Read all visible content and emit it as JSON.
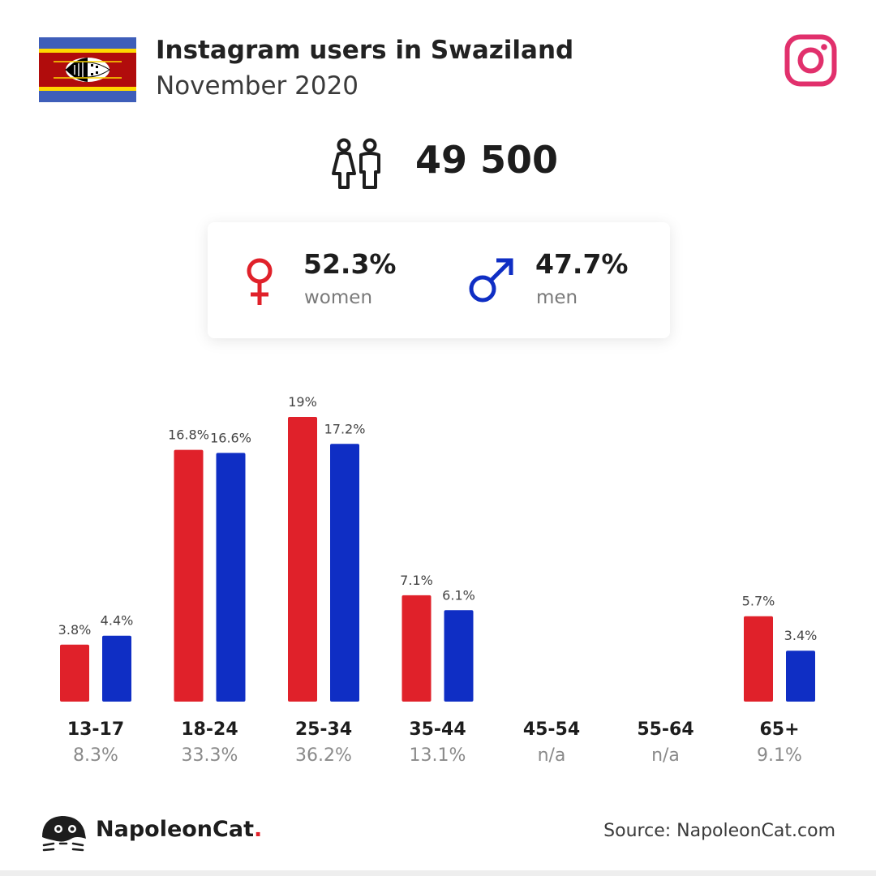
{
  "header": {
    "title": "Instagram users in Swaziland",
    "subtitle": "November 2020"
  },
  "icons": {
    "flag": "eswatini-flag-icon",
    "social": "instagram-icon",
    "users": "users-icon",
    "female": "female-symbol-icon",
    "male": "male-symbol-icon",
    "brand": "napoleoncat-logo-icon"
  },
  "summary": {
    "total_users": "49 500",
    "women": {
      "percent": "52.3%",
      "label": "women"
    },
    "men": {
      "percent": "47.7%",
      "label": "men"
    }
  },
  "colors": {
    "women": "#e0212a",
    "men": "#0f2ec4",
    "instagram": "#e1306c"
  },
  "chart_data": {
    "type": "bar",
    "categories": [
      "13-17",
      "18-24",
      "25-34",
      "35-44",
      "45-54",
      "55-64",
      "65+"
    ],
    "category_totals": [
      "8.3%",
      "33.3%",
      "36.2%",
      "13.1%",
      "n/a",
      "n/a",
      "9.1%"
    ],
    "series": [
      {
        "name": "women",
        "values": [
          3.8,
          16.8,
          19,
          7.1,
          null,
          null,
          5.7
        ],
        "labels": [
          "3.8%",
          "16.8%",
          "19%",
          "7.1%",
          "",
          "",
          "5.7%"
        ]
      },
      {
        "name": "men",
        "values": [
          4.4,
          16.6,
          17.2,
          6.1,
          null,
          null,
          3.4
        ],
        "labels": [
          "4.4%",
          "16.6%",
          "17.2%",
          "6.1%",
          "",
          "",
          "3.4%"
        ]
      }
    ],
    "title": "",
    "xlabel": "",
    "ylabel": "",
    "ylim": [
      0,
      19
    ],
    "grid": false
  },
  "footer": {
    "brand_name": "NapoleonCat",
    "brand_dot": ".",
    "source": "Source: NapoleonCat.com"
  }
}
